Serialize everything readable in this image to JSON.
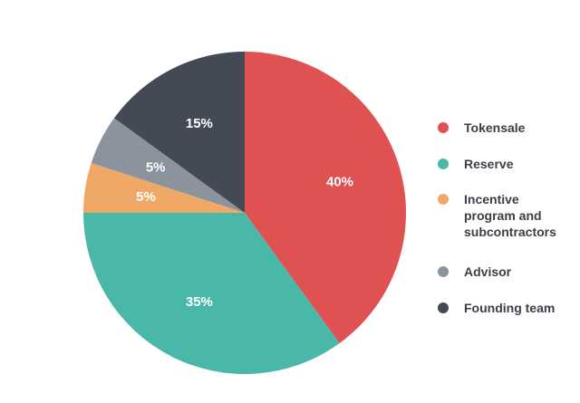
{
  "chart_data": {
    "type": "pie",
    "title": "",
    "slices": [
      {
        "label": "Tokensale",
        "value": 40,
        "display": "40%",
        "color": "#e05252"
      },
      {
        "label": "Reserve",
        "value": 35,
        "display": "35%",
        "color": "#4ab8a9"
      },
      {
        "label": "Incentive program and subcontractors",
        "value": 5,
        "display": "5%",
        "color": "#f0a866"
      },
      {
        "label": "Advisor",
        "value": 5,
        "display": "5%",
        "color": "#8b939e"
      },
      {
        "label": "Founding team",
        "value": 15,
        "display": "15%",
        "color": "#434a55"
      }
    ],
    "start_angle_deg": 0,
    "direction": "clockwise",
    "legend_position": "right"
  },
  "legend": {
    "items": [
      {
        "label": "Tokensale",
        "color": "#e05252"
      },
      {
        "label": "Reserve",
        "color": "#4ab8a9"
      },
      {
        "label": "Incentive\nprogram and\nsubcontractors",
        "color": "#f0a866"
      },
      {
        "label": "Advisor",
        "color": "#8b939e"
      },
      {
        "label": "Founding team",
        "color": "#434a55"
      }
    ]
  }
}
